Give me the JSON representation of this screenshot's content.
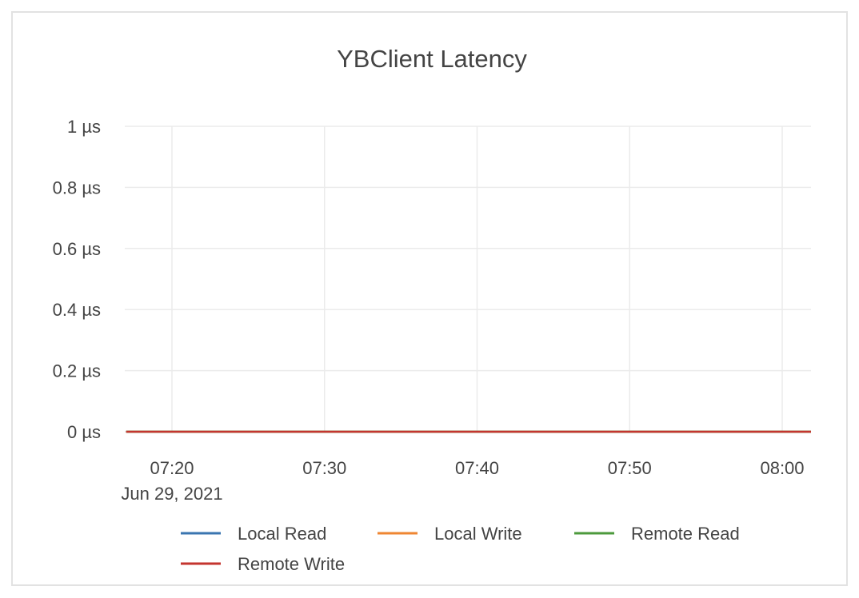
{
  "chart_data": {
    "type": "line",
    "title": "YBClient Latency",
    "xlabel": "",
    "ylabel": "",
    "x_ticks": [
      "07:20",
      "07:30",
      "07:40",
      "07:50",
      "08:00"
    ],
    "x_tick_date": "Jun 29, 2021",
    "x_range": [
      "07:17",
      "08:02"
    ],
    "y_ticks": [
      {
        "value": 0,
        "label": "0 µs"
      },
      {
        "value": 0.2,
        "label": "0.2 µs"
      },
      {
        "value": 0.4,
        "label": "0.4 µs"
      },
      {
        "value": 0.6,
        "label": "0.6 µs"
      },
      {
        "value": 0.8,
        "label": "0.8 µs"
      },
      {
        "value": 1,
        "label": "1 µs"
      }
    ],
    "ylim": [
      0,
      1
    ],
    "y_unit": "µs",
    "grid": true,
    "legend_placement": "bottom",
    "x": [
      "07:17",
      "07:25",
      "07:35",
      "07:45",
      "07:55",
      "08:02"
    ],
    "series": [
      {
        "name": "Local Read",
        "color": "#3a75b0",
        "values": [
          0,
          0,
          0,
          0,
          0,
          0
        ]
      },
      {
        "name": "Local Write",
        "color": "#ef8632",
        "values": [
          0,
          0,
          0,
          0,
          0,
          0
        ]
      },
      {
        "name": "Remote Read",
        "color": "#4c9a3c",
        "values": [
          0,
          0,
          0,
          0,
          0,
          0
        ]
      },
      {
        "name": "Remote Write",
        "color": "#c4352f",
        "values": [
          0,
          0,
          0,
          0,
          0,
          0
        ]
      }
    ]
  }
}
